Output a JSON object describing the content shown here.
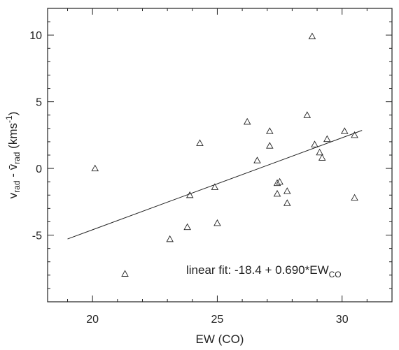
{
  "chart_data": {
    "type": "scatter",
    "title": "",
    "xlabel": "EW (CO)",
    "ylabel": {
      "v1": "v",
      "v1_sub": "rad",
      "minus": " - ",
      "v2": "v̄",
      "v2_sub": "rad",
      "unit_open": " (kms",
      "unit_sup": "-1",
      "unit_close": ")"
    },
    "xlim": [
      18.2,
      32.0
    ],
    "ylim": [
      -10.0,
      12.0
    ],
    "xticks": [
      20,
      25,
      30
    ],
    "yticks": [
      -5,
      0,
      5,
      10
    ],
    "grid": false,
    "series": [
      {
        "marker": "triangle",
        "points": [
          {
            "x": 20.1,
            "y": 0.0
          },
          {
            "x": 21.3,
            "y": -7.9
          },
          {
            "x": 23.1,
            "y": -5.3
          },
          {
            "x": 23.8,
            "y": -4.4
          },
          {
            "x": 23.9,
            "y": -2.0
          },
          {
            "x": 24.3,
            "y": 1.9
          },
          {
            "x": 24.9,
            "y": -1.4
          },
          {
            "x": 25.0,
            "y": -4.1
          },
          {
            "x": 26.2,
            "y": 3.5
          },
          {
            "x": 26.6,
            "y": 0.6
          },
          {
            "x": 27.1,
            "y": 2.8
          },
          {
            "x": 27.1,
            "y": 1.7
          },
          {
            "x": 27.4,
            "y": -1.1
          },
          {
            "x": 27.5,
            "y": -1.0
          },
          {
            "x": 27.4,
            "y": -1.9
          },
          {
            "x": 27.8,
            "y": -1.7
          },
          {
            "x": 27.8,
            "y": -2.6
          },
          {
            "x": 28.6,
            "y": 4.0
          },
          {
            "x": 28.8,
            "y": 9.9
          },
          {
            "x": 28.9,
            "y": 1.8
          },
          {
            "x": 29.1,
            "y": 1.2
          },
          {
            "x": 29.2,
            "y": 0.8
          },
          {
            "x": 29.4,
            "y": 2.2
          },
          {
            "x": 30.1,
            "y": 2.8
          },
          {
            "x": 30.5,
            "y": 2.5
          },
          {
            "x": 30.5,
            "y": -2.2
          }
        ]
      }
    ],
    "fit": {
      "intercept": -18.4,
      "slope": 0.69,
      "x_range": [
        19.0,
        30.8
      ],
      "label_main": "linear fit: -18.4 + 0.690*EW",
      "label_sub": "CO"
    }
  }
}
